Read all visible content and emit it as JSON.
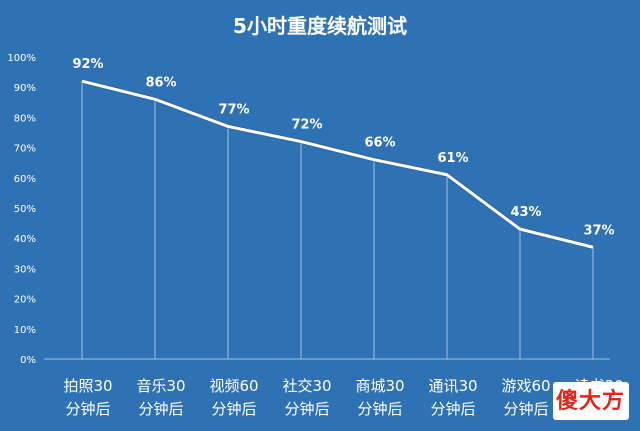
{
  "chart_data": {
    "type": "line",
    "title": "5小时重度续航测试",
    "categories": [
      [
        "拍照30",
        "分钟后"
      ],
      [
        "音乐30",
        "分钟后"
      ],
      [
        "视频60",
        "分钟后"
      ],
      [
        "社交30",
        "分钟后"
      ],
      [
        "商城30",
        "分钟后"
      ],
      [
        "通讯30",
        "分钟后"
      ],
      [
        "游戏60",
        "分钟后"
      ],
      [
        "读书30",
        "分钟后"
      ]
    ],
    "values": [
      92,
      86,
      77,
      72,
      66,
      61,
      43,
      37
    ],
    "data_labels": [
      "92%",
      "86%",
      "77%",
      "72%",
      "66%",
      "61%",
      "43%",
      "37%"
    ],
    "yticks": [
      "0%",
      "10%",
      "20%",
      "30%",
      "40%",
      "50%",
      "60%",
      "70%",
      "80%",
      "90%",
      "100%"
    ],
    "ylim": [
      0,
      100
    ],
    "grid": false,
    "colors": {
      "background": "#2f72b3",
      "line": "#ffffff",
      "drop": "#9fc2e6"
    }
  },
  "watermark": {
    "text": "傻大方"
  }
}
